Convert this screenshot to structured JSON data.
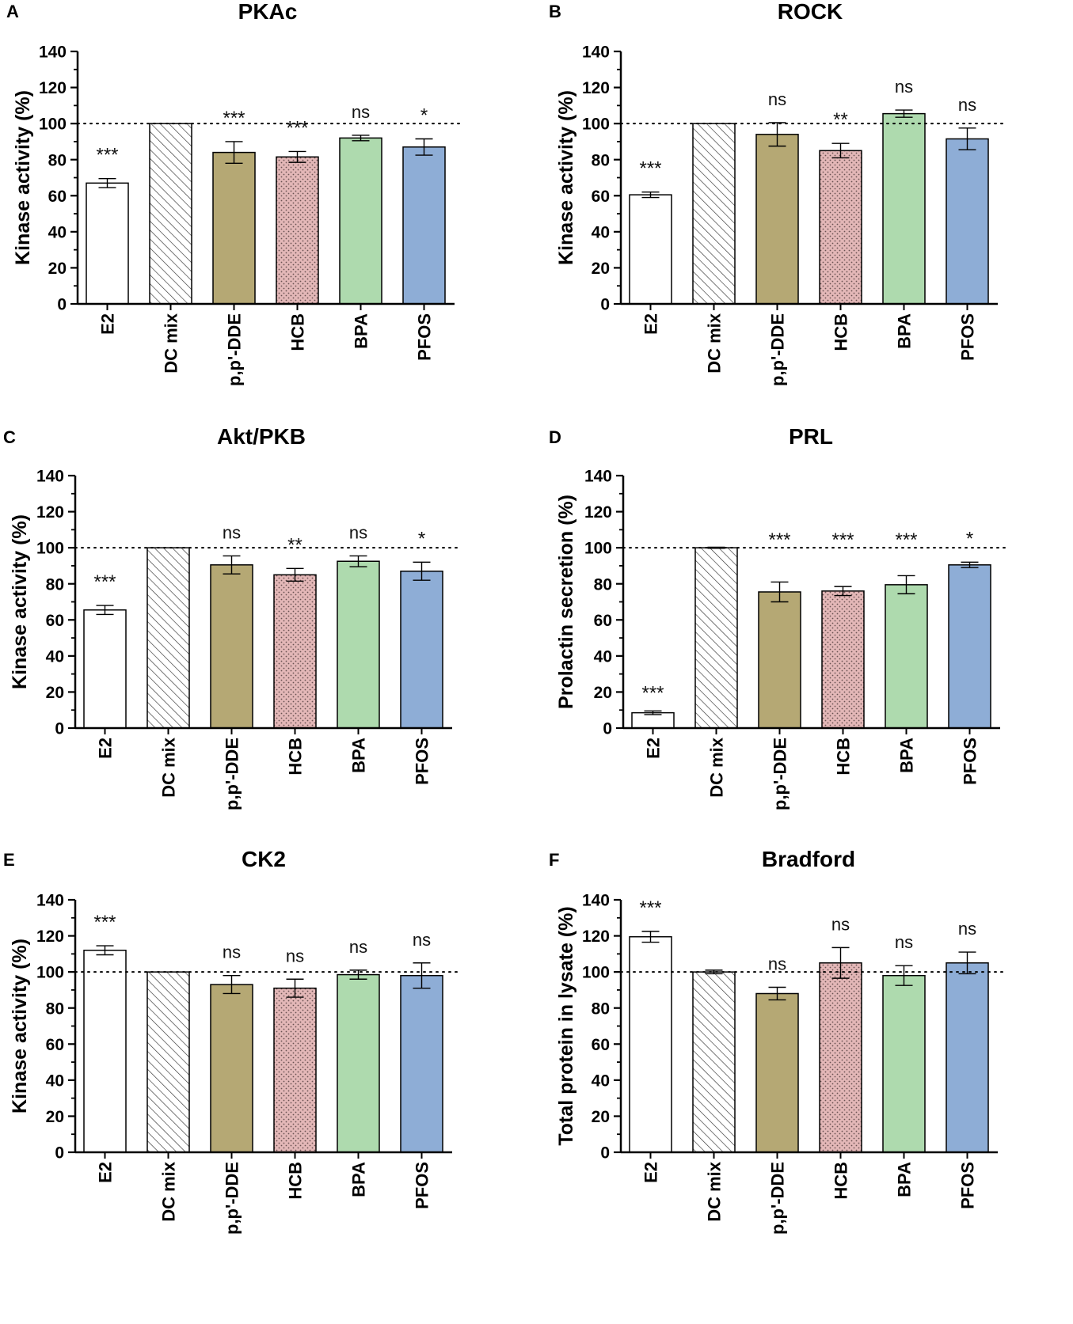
{
  "chart_data": [
    {
      "panel": "A",
      "title": "PKAc",
      "type": "bar",
      "ylabel": "Kinase activity (%)",
      "ylim": [
        0,
        140
      ],
      "yticks": [
        "0",
        "20",
        "40",
        "60",
        "80",
        "100",
        "120",
        "140"
      ],
      "reference_line": 100,
      "categories": [
        "E2",
        "DC mix",
        "p,p'-DDE",
        "HCB",
        "BPA",
        "PFOS"
      ],
      "values": [
        67,
        100,
        84,
        81.5,
        92,
        87
      ],
      "errors": [
        2.5,
        0,
        6,
        3,
        1.5,
        4.5
      ],
      "significance": [
        "***",
        "",
        "***",
        "***",
        "ns",
        "*"
      ]
    },
    {
      "panel": "B",
      "title": "ROCK",
      "type": "bar",
      "ylabel": "Kinase activity (%)",
      "ylim": [
        0,
        140
      ],
      "yticks": [
        "0",
        "20",
        "40",
        "60",
        "80",
        "100",
        "120",
        "140"
      ],
      "reference_line": 100,
      "categories": [
        "E2",
        "DC mix",
        "p,p'-DDE",
        "HCB",
        "BPA",
        "PFOS"
      ],
      "values": [
        60.5,
        100,
        94,
        85,
        105.5,
        91.5
      ],
      "errors": [
        1.5,
        0,
        6.5,
        4,
        2,
        6
      ],
      "significance": [
        "***",
        "",
        "ns",
        "**",
        "ns",
        "ns"
      ]
    },
    {
      "panel": "C",
      "title": "Akt/PKB",
      "type": "bar",
      "ylabel": "Kinase activity (%)",
      "ylim": [
        0,
        140
      ],
      "yticks": [
        "0",
        "20",
        "40",
        "60",
        "80",
        "100",
        "120",
        "140"
      ],
      "reference_line": 100,
      "categories": [
        "E2",
        "DC mix",
        "p,p'-DDE",
        "HCB",
        "BPA",
        "PFOS"
      ],
      "values": [
        65.5,
        100,
        90.5,
        85,
        92.5,
        87
      ],
      "errors": [
        2.5,
        0,
        5,
        3.5,
        3,
        5
      ],
      "significance": [
        "***",
        "",
        "ns",
        "**",
        "ns",
        "*"
      ]
    },
    {
      "panel": "D",
      "title": "PRL",
      "type": "bar",
      "ylabel": "Prolactin secretion (%)",
      "ylim": [
        0,
        140
      ],
      "yticks": [
        "0",
        "20",
        "40",
        "60",
        "80",
        "100",
        "120",
        "140"
      ],
      "reference_line": 100,
      "categories": [
        "E2",
        "DC mix",
        "p,p'-DDE",
        "HCB",
        "BPA",
        "PFOS"
      ],
      "values": [
        8.5,
        100,
        75.5,
        76,
        79.5,
        90.5
      ],
      "errors": [
        1,
        0.3,
        5.5,
        2.5,
        5,
        1.5
      ],
      "significance": [
        "***",
        "",
        "***",
        "***",
        "***",
        "*"
      ]
    },
    {
      "panel": "E",
      "title": "CK2",
      "type": "bar",
      "ylabel": "Kinase activity (%)",
      "ylim": [
        0,
        140
      ],
      "yticks": [
        "0",
        "20",
        "40",
        "60",
        "80",
        "100",
        "120",
        "140"
      ],
      "reference_line": 100,
      "categories": [
        "E2",
        "DC mix",
        "p,p'-DDE",
        "HCB",
        "BPA",
        "PFOS"
      ],
      "values": [
        112,
        100,
        93,
        91,
        98.5,
        98
      ],
      "errors": [
        2.5,
        0,
        5,
        5,
        2.5,
        7
      ],
      "significance": [
        "***",
        "",
        "ns",
        "ns",
        "ns",
        "ns"
      ]
    },
    {
      "panel": "F",
      "title": "Bradford",
      "type": "bar",
      "ylabel": "Total protein in lysate (%)",
      "ylim": [
        0,
        140
      ],
      "yticks": [
        "0",
        "20",
        "40",
        "60",
        "80",
        "100",
        "120",
        "140"
      ],
      "reference_line": 100,
      "categories": [
        "E2",
        "DC mix",
        "p,p'-DDE",
        "HCB",
        "BPA",
        "PFOS"
      ],
      "values": [
        119.5,
        100,
        88,
        105,
        98,
        105
      ],
      "errors": [
        3,
        1,
        3.5,
        8.5,
        5.5,
        6
      ],
      "significance": [
        "***",
        "",
        "ns",
        "ns",
        "ns",
        "ns"
      ]
    }
  ],
  "colors": {
    "E2": "#ffffff",
    "DC mix": "#ffffff",
    "p,p'-DDE": "#b5a874",
    "HCB": "#e3b7b7",
    "BPA": "#aedaae",
    "PFOS": "#8eadd6"
  }
}
